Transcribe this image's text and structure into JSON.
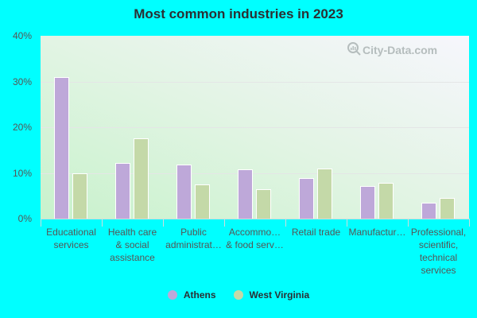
{
  "title": "Most common industries in 2023",
  "watermark": "City-Data.com",
  "colors": {
    "Athens": "#bea8d9",
    "West Virginia": "#c4d9a8"
  },
  "legend": [
    {
      "label": "Athens",
      "color": "#bea8d9"
    },
    {
      "label": "West Virginia",
      "color": "#c4d9a8"
    }
  ],
  "yticks": [
    "40%",
    "30%",
    "20%",
    "10%",
    "0%"
  ],
  "xlabels": [
    [
      "Educational",
      "services"
    ],
    [
      "Health care",
      "& social",
      "assistance"
    ],
    [
      "Public",
      "administrat…"
    ],
    [
      "Accommo…",
      "& food serv…"
    ],
    [
      "Retail trade"
    ],
    [
      "Manufactur…"
    ],
    [
      "Professional,",
      "scientific,",
      "technical",
      "services"
    ]
  ],
  "chart_data": {
    "type": "bar",
    "title": "Most common industries in 2023",
    "categories": [
      "Educational services",
      "Health care & social assistance",
      "Public administration",
      "Accommodation & food services",
      "Retail trade",
      "Manufacturing",
      "Professional, scientific, technical services"
    ],
    "series": [
      {
        "name": "Athens",
        "values": [
          31.0,
          12.1,
          11.9,
          10.7,
          8.8,
          7.2,
          3.4
        ]
      },
      {
        "name": "West Virginia",
        "values": [
          9.9,
          17.5,
          7.4,
          6.5,
          11.0,
          7.9,
          4.6
        ]
      }
    ],
    "xlabel": "",
    "ylabel": "",
    "yticks": [
      "0%",
      "10%",
      "20%",
      "30%",
      "40%"
    ],
    "ylim": [
      0,
      40
    ],
    "grid": true,
    "legend_position": "bottom"
  }
}
